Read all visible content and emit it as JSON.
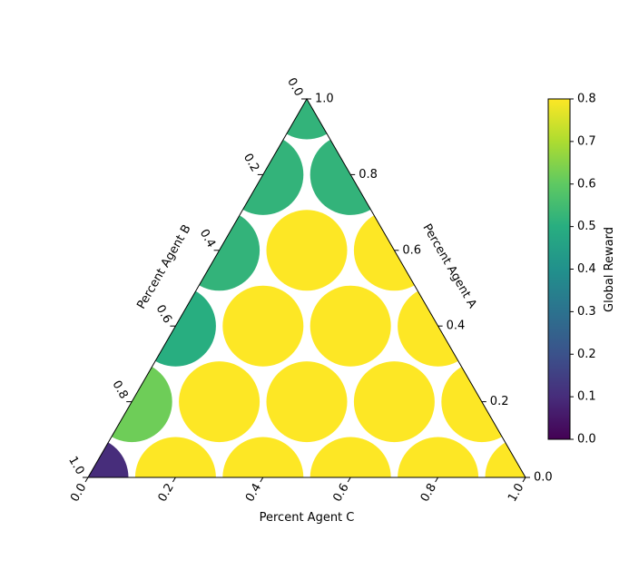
{
  "chart_data": {
    "type": "scatter",
    "subtype": "ternary",
    "axes": {
      "a": {
        "label": "Percent Agent A",
        "ticks": [
          "0.0",
          "0.2",
          "0.4",
          "0.6",
          "0.8",
          "1.0"
        ]
      },
      "b": {
        "label": "Percent Agent B",
        "ticks": [
          "0.0",
          "0.2",
          "0.4",
          "0.6",
          "0.8",
          "1.0"
        ]
      },
      "c": {
        "label": "Percent Agent C",
        "ticks": [
          "0.0",
          "0.2",
          "0.4",
          "0.6",
          "0.8",
          "1.0"
        ]
      }
    },
    "grid": false,
    "colorbar": {
      "label": "Global Reward",
      "colormap": "viridis",
      "range": [
        0.0,
        0.8
      ],
      "ticks": [
        "0.0",
        "0.1",
        "0.2",
        "0.3",
        "0.4",
        "0.5",
        "0.6",
        "0.7",
        "0.8"
      ],
      "placement": "right"
    },
    "points": [
      {
        "a": 1.0,
        "b": 0.0,
        "c": 0.0,
        "value": 0.52
      },
      {
        "a": 0.8,
        "b": 0.2,
        "c": 0.0,
        "value": 0.52
      },
      {
        "a": 0.8,
        "b": 0.0,
        "c": 0.2,
        "value": 0.52
      },
      {
        "a": 0.6,
        "b": 0.4,
        "c": 0.0,
        "value": 0.52
      },
      {
        "a": 0.6,
        "b": 0.2,
        "c": 0.2,
        "value": 0.8
      },
      {
        "a": 0.6,
        "b": 0.0,
        "c": 0.4,
        "value": 0.8
      },
      {
        "a": 0.4,
        "b": 0.6,
        "c": 0.0,
        "value": 0.5
      },
      {
        "a": 0.4,
        "b": 0.4,
        "c": 0.2,
        "value": 0.8
      },
      {
        "a": 0.4,
        "b": 0.2,
        "c": 0.4,
        "value": 0.8
      },
      {
        "a": 0.4,
        "b": 0.0,
        "c": 0.6,
        "value": 0.8
      },
      {
        "a": 0.2,
        "b": 0.8,
        "c": 0.0,
        "value": 0.62
      },
      {
        "a": 0.2,
        "b": 0.6,
        "c": 0.2,
        "value": 0.8
      },
      {
        "a": 0.2,
        "b": 0.4,
        "c": 0.4,
        "value": 0.8
      },
      {
        "a": 0.2,
        "b": 0.2,
        "c": 0.6,
        "value": 0.8
      },
      {
        "a": 0.2,
        "b": 0.0,
        "c": 0.8,
        "value": 0.8
      },
      {
        "a": 0.0,
        "b": 1.0,
        "c": 0.0,
        "value": 0.1
      },
      {
        "a": 0.0,
        "b": 0.8,
        "c": 0.2,
        "value": 0.8
      },
      {
        "a": 0.0,
        "b": 0.6,
        "c": 0.4,
        "value": 0.8
      },
      {
        "a": 0.0,
        "b": 0.4,
        "c": 0.6,
        "value": 0.8
      },
      {
        "a": 0.0,
        "b": 0.2,
        "c": 0.8,
        "value": 0.8
      },
      {
        "a": 0.0,
        "b": 0.0,
        "c": 1.0,
        "value": 0.8
      }
    ]
  }
}
